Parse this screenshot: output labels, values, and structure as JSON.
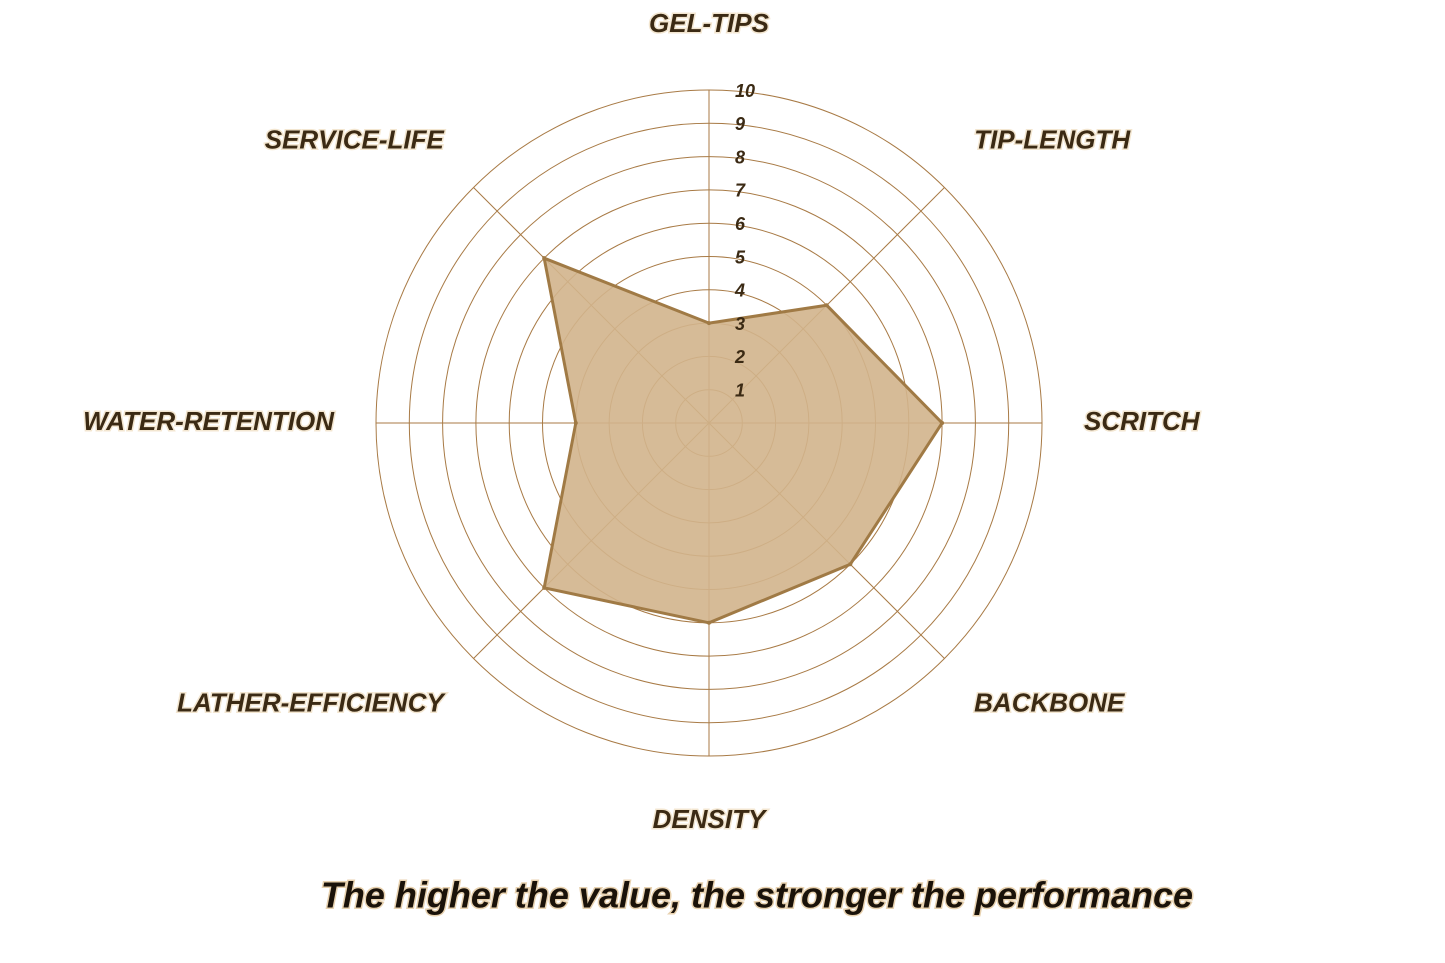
{
  "chart_data": {
    "type": "radar",
    "categories": [
      "GEL-TIPS",
      "TIP-LENGTH",
      "SCRITCH",
      "BACKBONE",
      "DENSITY",
      "LATHER-EFFICIENCY",
      "WATER-RETENTION",
      "SERVICE-LIFE"
    ],
    "values": [
      3,
      5,
      7,
      6,
      6,
      7,
      4,
      7
    ],
    "color": "#a07a45",
    "fill": "#d2b48c",
    "grid_color": "#a87a45",
    "rlim": [
      0,
      10
    ],
    "rticks": [
      1,
      2,
      3,
      4,
      5,
      6,
      7,
      8,
      9,
      10
    ],
    "caption": "The higher the value, the stronger the performance"
  }
}
